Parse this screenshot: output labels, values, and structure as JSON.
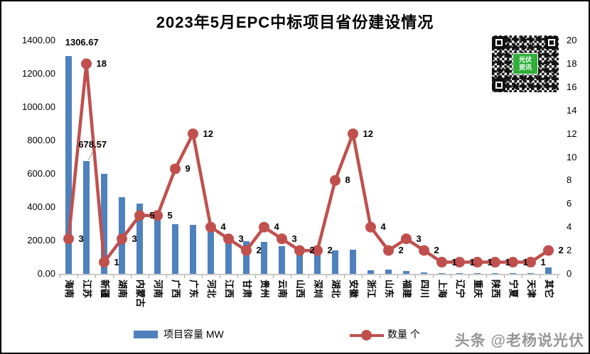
{
  "title": "2023年5月EPC中标项目省份建设情况",
  "chart_data": {
    "type": "combo-bar-line",
    "categories": [
      "海南",
      "江苏",
      "新疆",
      "湖南",
      "内蒙古",
      "河南",
      "广西",
      "广东",
      "河北",
      "江西",
      "甘肃",
      "贵州",
      "云南",
      "山西",
      "深圳",
      "湖北",
      "安徽",
      "浙江",
      "山东",
      "福建",
      "四川",
      "上海",
      "辽宁",
      "重庆",
      "陕西",
      "宁夏",
      "天津",
      "其它"
    ],
    "series": [
      {
        "name": "项目容量 MW",
        "type": "bar",
        "axis": "left",
        "color": "#4F81BD",
        "values": [
          1306.67,
          678.57,
          600,
          460,
          420,
          330,
          300,
          295,
          255,
          225,
          195,
          190,
          165,
          140,
          130,
          140,
          145,
          20,
          25,
          15,
          10,
          5,
          4,
          4,
          4,
          4,
          3,
          40
        ]
      },
      {
        "name": "数量 个",
        "type": "line",
        "axis": "right",
        "color": "#C0504D",
        "values": [
          3,
          18,
          1,
          3,
          5,
          5,
          9,
          12,
          4,
          3,
          2,
          4,
          3,
          2,
          2,
          8,
          12,
          4,
          2,
          3,
          2,
          1,
          1,
          1,
          1,
          1,
          1,
          2
        ]
      }
    ],
    "left_axis": {
      "min": 0,
      "max": 1400,
      "step": 200,
      "decimals": 2
    },
    "right_axis": {
      "min": 0,
      "max": 20,
      "step": 2,
      "decimals": 0
    },
    "bar_value_labels": [
      {
        "index": 0,
        "text": "1306.67",
        "raised": false
      },
      {
        "index": 1,
        "text": "678.57",
        "raised": true
      }
    ],
    "grid": false,
    "legend_position": "bottom"
  },
  "legend": {
    "bar_label": "项目容量 MW",
    "line_label": "数量 个"
  },
  "qr_code": {
    "center_text_line1": "光伏",
    "center_text_line2": "资讯"
  },
  "watermark": "头条 @老杨说光伏"
}
